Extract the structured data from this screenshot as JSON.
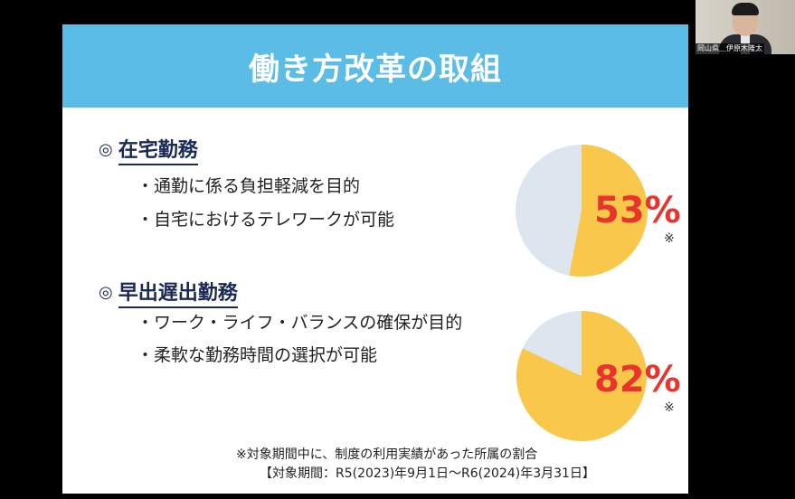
{
  "slide": {
    "title": "働き方改革の取組",
    "sections": [
      {
        "mark": "◎",
        "heading": "在宅勤務",
        "bullets": [
          "・通勤に係る負担軽減を目的",
          "・自宅におけるテレワークが可能"
        ],
        "percent_label": "53%",
        "percent_value": 53,
        "asterisk": "※"
      },
      {
        "mark": "◎",
        "heading": "早出遅出勤務",
        "bullets": [
          "・ワーク・ライフ・バランスの確保が目的",
          "・柔軟な勤務時間の選択が可能"
        ],
        "percent_label": "82%",
        "percent_value": 82,
        "asterisk": "※"
      }
    ],
    "footnote_line1": "※対象期間中に、制度の利用実績があった所属の割合",
    "footnote_line2": "【対象期間：R5(2023)年9月1日～R6(2024)年3月31日】"
  },
  "video_tile": {
    "participant_name": "岡山県＿伊原木隆太"
  },
  "colors": {
    "banner": "#5bbde6",
    "pie_filled": "#f9c84a",
    "pie_remaining": "#dde5ef",
    "percent_text": "#e8342c",
    "heading_text": "#1a2a55"
  }
}
